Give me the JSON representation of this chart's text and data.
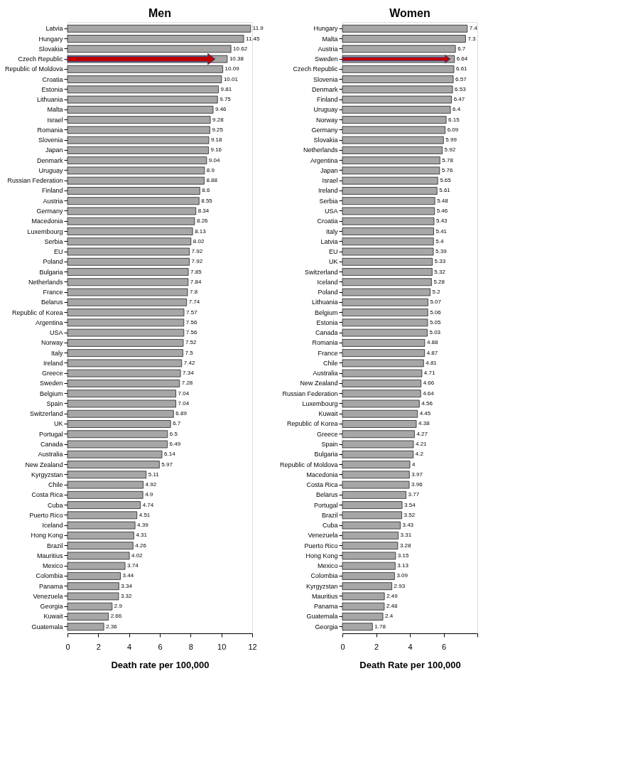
{
  "chart_data": [
    {
      "type": "bar",
      "orientation": "horizontal",
      "title": "Men",
      "xlabel": "Death rate per 100,000",
      "color": "#a6a6a6",
      "data_labels": true,
      "grid": false,
      "xlim": [
        0,
        12
      ],
      "xticks": [
        0,
        2,
        4,
        6,
        8,
        10,
        12
      ],
      "categories": [
        "Latvia",
        "Hungary",
        "Slovakia",
        "Czech Republic",
        "Republic of Moldova",
        "Croatia",
        "Estonia",
        "Lithuania",
        "Malta",
        "Israel",
        "Romania",
        "Slovenia",
        "Japan",
        "Denmark",
        "Uruguay",
        "Russian Federation",
        "Finland",
        "Austria",
        "Germany",
        "Macedonia",
        "Luxembourg",
        "Serbia",
        "EU",
        "Poland",
        "Bulgaria",
        "Netherlands",
        "France",
        "Belarus",
        "Republic of Korea",
        "Argentina",
        "USA",
        "Norway",
        "Italy",
        "Ireland",
        "Greece",
        "Sweden",
        "Belgium",
        "Spain",
        "Switzerland",
        "UK",
        "Portugal",
        "Canada",
        "Australia",
        "New Zealand",
        "Kyrgyzstan",
        "Chile",
        "Costa Rica",
        "Cuba",
        "Puerto Rico",
        "Iceland",
        "Hong Kong",
        "Brazil",
        "Mauritius",
        "Mexico",
        "Colombia",
        "Panama",
        "Venezuela",
        "Georgia",
        "Kuwait",
        "Guatemala"
      ],
      "values": [
        11.9,
        11.45,
        10.62,
        10.38,
        10.09,
        10.01,
        9.81,
        9.75,
        9.46,
        9.28,
        9.25,
        9.18,
        9.16,
        9.04,
        8.9,
        8.88,
        8.6,
        8.55,
        8.34,
        8.26,
        8.13,
        8.02,
        7.92,
        7.92,
        7.85,
        7.84,
        7.8,
        7.74,
        7.57,
        7.56,
        7.56,
        7.52,
        7.5,
        7.42,
        7.34,
        7.28,
        7.04,
        7.04,
        6.89,
        6.7,
        6.5,
        6.49,
        6.14,
        5.97,
        5.11,
        4.92,
        4.9,
        4.74,
        4.51,
        4.39,
        4.31,
        4.26,
        4.02,
        3.74,
        3.44,
        3.34,
        3.32,
        2.9,
        2.66,
        2.36
      ]
    },
    {
      "type": "bar",
      "orientation": "horizontal",
      "title": "Women",
      "xlabel": "Death Rate per 100,000",
      "color": "#a6a6a6",
      "data_labels": true,
      "grid": false,
      "xlim": [
        0,
        8
      ],
      "xticks": [
        0,
        2,
        4,
        6,
        {
          "value": 8,
          "label": null
        }
      ],
      "categories": [
        "Hungary",
        "Malta",
        "Austria",
        "Sweden",
        "Czech Republic",
        "Slovenia",
        "Denmark",
        "Finland",
        "Uruguay",
        "Norway",
        "Germany",
        "Slovakia",
        "Netherlands",
        "Argentina",
        "Japan",
        "Israel",
        "Ireland",
        "Serbia",
        "USA",
        "Croatia",
        "Italy",
        "Latvia",
        "EU",
        "UK",
        "Switzerland",
        "Iceland",
        "Poland",
        "Lithuania",
        "Belgium",
        "Estonia",
        "Canada",
        "Romania",
        "France",
        "Chile",
        "Australia",
        "New Zealand",
        "Russian Federation",
        "Luxembourg",
        "Kuwait",
        "Republic of Korea",
        "Greece",
        "Spain",
        "Bulgaria",
        "Republic of Moldova",
        "Macedonia",
        "Costa Rica",
        "Belarus",
        "Portugal",
        "Brazil",
        "Cuba",
        "Venezuela",
        "Puerto Rico",
        "Hong Kong",
        "Mexico",
        "Colombia",
        "Kyrgyzstan",
        "Mauritius",
        "Panama",
        "Guatemala",
        "Georgia"
      ],
      "values": [
        7.4,
        7.3,
        6.7,
        6.64,
        6.61,
        6.57,
        6.53,
        6.47,
        6.4,
        6.15,
        6.09,
        5.99,
        5.92,
        5.78,
        5.76,
        5.65,
        5.61,
        5.48,
        5.46,
        5.43,
        5.41,
        5.4,
        5.39,
        5.33,
        5.32,
        5.28,
        5.2,
        5.07,
        5.06,
        5.05,
        5.03,
        4.88,
        4.87,
        4.81,
        4.71,
        4.66,
        4.64,
        4.56,
        4.45,
        4.38,
        4.27,
        4.21,
        4.2,
        4,
        3.97,
        3.96,
        3.77,
        3.54,
        3.52,
        3.43,
        3.31,
        3.28,
        3.15,
        3.13,
        3.09,
        2.93,
        2.49,
        2.48,
        2.4,
        1.78
      ]
    }
  ]
}
